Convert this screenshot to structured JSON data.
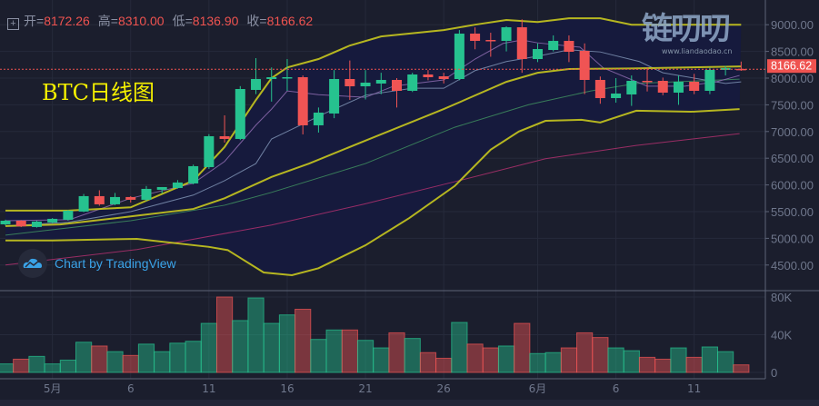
{
  "legend": {
    "open_label": "开=",
    "open": "8172.26",
    "high_label": "高=",
    "high": "8310.00",
    "low_label": "低=",
    "low": "8136.90",
    "close_label": "收=",
    "close": "8166.62"
  },
  "title": "BTC日线图",
  "attribution": "Chart by TradingView",
  "watermark": {
    "text": "链叨叨",
    "url": "www.liandaodao.cn"
  },
  "colors": {
    "up": "#26c28f",
    "down": "#f05454",
    "bb": "#c8c81e",
    "ma5": "#8e6cb0",
    "ma10": "#7f93b4",
    "ma30": "#3f8f5f",
    "ma60": "#b0306e",
    "bg": "#1b1e2d",
    "band_fill": "#161a3d"
  },
  "chart_data": {
    "type": "candlestick",
    "title": "BTC日线图",
    "x_ticks": [
      {
        "index": 3,
        "label": "5月"
      },
      {
        "index": 8,
        "label": "6"
      },
      {
        "index": 13,
        "label": "11"
      },
      {
        "index": 18,
        "label": "16"
      },
      {
        "index": 23,
        "label": "21"
      },
      {
        "index": 28,
        "label": "26"
      },
      {
        "index": 34,
        "label": "6月"
      },
      {
        "index": 39,
        "label": "6"
      },
      {
        "index": 44,
        "label": "11"
      }
    ],
    "y_ticks": [
      "9000.00",
      "8500.00",
      "8000.00",
      "7500.00",
      "7000.00",
      "6500.00",
      "6000.00",
      "5500.00",
      "5000.00",
      "4500.00"
    ],
    "ylim": [
      4000,
      9450
    ],
    "last_price_label": "8166.62",
    "candles": [
      [
        5262,
        5350,
        5240,
        5330
      ],
      [
        5330,
        5340,
        5210,
        5225
      ],
      [
        5212,
        5330,
        5200,
        5314
      ],
      [
        5297,
        5380,
        5280,
        5365
      ],
      [
        5348,
        5530,
        5330,
        5518
      ],
      [
        5501,
        5830,
        5490,
        5790
      ],
      [
        5790,
        5900,
        5610,
        5637
      ],
      [
        5637,
        5850,
        5620,
        5773
      ],
      [
        5773,
        5790,
        5670,
        5722
      ],
      [
        5722,
        5980,
        5700,
        5926
      ],
      [
        5909,
        5960,
        5840,
        5960
      ],
      [
        5943,
        6090,
        5930,
        6045
      ],
      [
        6028,
        6380,
        6010,
        6351
      ],
      [
        6334,
        6950,
        6300,
        6912
      ],
      [
        6912,
        7303,
        6793,
        6861
      ],
      [
        6861,
        7850,
        6840,
        7796
      ],
      [
        7779,
        8374,
        7700,
        7983
      ],
      [
        7983,
        8200,
        7560,
        8017
      ],
      [
        8000,
        8357,
        7762,
        8017
      ],
      [
        8017,
        8050,
        6946,
        7116
      ],
      [
        7116,
        7450,
        6980,
        7354
      ],
      [
        7337,
        8150,
        7250,
        7983
      ],
      [
        7983,
        8330,
        7592,
        7847
      ],
      [
        7847,
        8150,
        7600,
        7915
      ],
      [
        7898,
        8100,
        7700,
        7966
      ],
      [
        7966,
        8000,
        7450,
        7762
      ],
      [
        7762,
        8100,
        7740,
        8068
      ],
      [
        8068,
        8150,
        7960,
        8017
      ],
      [
        8034,
        8100,
        7900,
        7983
      ],
      [
        7983,
        8900,
        7960,
        8833
      ],
      [
        8833,
        8950,
        8540,
        8697
      ],
      [
        8714,
        8850,
        8400,
        8697
      ],
      [
        8697,
        8970,
        8500,
        8952
      ],
      [
        8952,
        9100,
        8100,
        8357
      ],
      [
        8357,
        8650,
        8300,
        8544
      ],
      [
        8527,
        8800,
        8500,
        8697
      ],
      [
        8697,
        8800,
        8300,
        8493
      ],
      [
        8510,
        8650,
        7700,
        7966
      ],
      [
        7966,
        8030,
        7520,
        7626
      ],
      [
        7626,
        8000,
        7540,
        7711
      ],
      [
        7694,
        8050,
        7480,
        7949
      ],
      [
        7949,
        8200,
        7750,
        7932
      ],
      [
        7949,
        8010,
        7680,
        7728
      ],
      [
        7728,
        8050,
        7500,
        7932
      ],
      [
        7932,
        8080,
        7700,
        7762
      ],
      [
        7762,
        8200,
        7700,
        8153
      ],
      [
        8153,
        8230,
        8050,
        8187
      ],
      [
        8172.26,
        8310,
        8136.9,
        8166.62
      ]
    ],
    "candle_fields": [
      "open",
      "high",
      "low",
      "close"
    ],
    "volume": {
      "y_ticks": [
        "80K",
        "40K",
        "0"
      ],
      "ylim": [
        0,
        86000
      ],
      "values": [
        9000,
        14000,
        17000,
        9000,
        13000,
        32000,
        28000,
        22000,
        18000,
        30000,
        22000,
        31000,
        33000,
        52000,
        80000,
        55000,
        79000,
        52000,
        61000,
        67000,
        35000,
        45000,
        45000,
        34000,
        26000,
        42000,
        36000,
        21000,
        15000,
        53000,
        30000,
        26000,
        28000,
        52000,
        20000,
        21000,
        26000,
        42000,
        37000,
        26000,
        23000,
        16000,
        14000,
        26000,
        16000,
        27000,
        22000,
        8000
      ]
    },
    "indicators": [
      {
        "name": "BB upper",
        "color_key": "bb",
        "width": 2,
        "points": [
          [
            0,
            5520
          ],
          [
            4,
            5520
          ],
          [
            8,
            5580
          ],
          [
            12,
            6080
          ],
          [
            14,
            6710
          ],
          [
            16,
            7590
          ],
          [
            17,
            8000
          ],
          [
            18,
            8200
          ],
          [
            20,
            8357
          ],
          [
            22,
            8610
          ],
          [
            24,
            8780
          ],
          [
            28,
            8900
          ],
          [
            30,
            9000
          ],
          [
            32,
            9088
          ],
          [
            34,
            9050
          ],
          [
            36,
            9120
          ],
          [
            38,
            9120
          ],
          [
            40,
            9000
          ],
          [
            47,
            9000
          ]
        ]
      },
      {
        "name": "BB basis",
        "color_key": "bb",
        "width": 2,
        "points": [
          [
            0,
            5230
          ],
          [
            3.5,
            5260
          ],
          [
            8,
            5410
          ],
          [
            12,
            5550
          ],
          [
            14,
            5750
          ],
          [
            17,
            6150
          ],
          [
            19.4,
            6400
          ],
          [
            23,
            6830
          ],
          [
            28,
            7420
          ],
          [
            32,
            7930
          ],
          [
            34,
            8100
          ],
          [
            36,
            8170
          ],
          [
            40,
            8180
          ],
          [
            47,
            8220
          ]
        ]
      },
      {
        "name": "BB lower",
        "color_key": "bb",
        "width": 2,
        "points": [
          [
            0,
            4960
          ],
          [
            3,
            4960
          ],
          [
            8.4,
            4990
          ],
          [
            13,
            4840
          ],
          [
            14.2,
            4780
          ],
          [
            16.5,
            4360
          ],
          [
            18.3,
            4310
          ],
          [
            20,
            4440
          ],
          [
            23,
            4870
          ],
          [
            25.8,
            5380
          ],
          [
            28.7,
            5980
          ],
          [
            31,
            6660
          ],
          [
            32.8,
            7000
          ],
          [
            34.5,
            7200
          ],
          [
            36.8,
            7220
          ],
          [
            38,
            7170
          ],
          [
            40.3,
            7390
          ],
          [
            43.8,
            7370
          ],
          [
            46.9,
            7420
          ]
        ]
      },
      {
        "name": "MA5",
        "color_key": "ma5",
        "width": 1,
        "points": [
          [
            0,
            5330
          ],
          [
            4.1,
            5350
          ],
          [
            8,
            5750
          ],
          [
            10,
            5890
          ],
          [
            12,
            6030
          ],
          [
            14,
            6440
          ],
          [
            16,
            7120
          ],
          [
            17,
            7420
          ],
          [
            18,
            7760
          ],
          [
            20,
            7690
          ],
          [
            23,
            7640
          ],
          [
            24.8,
            7850
          ],
          [
            28,
            7966
          ],
          [
            30,
            8357
          ],
          [
            31.8,
            8650
          ],
          [
            33,
            8714
          ],
          [
            34,
            8660
          ],
          [
            36.7,
            8580
          ],
          [
            38.2,
            8190
          ],
          [
            41,
            7850
          ],
          [
            43.4,
            7850
          ],
          [
            45.4,
            7930
          ],
          [
            46.9,
            8050
          ]
        ]
      },
      {
        "name": "MA10",
        "color_key": "ma10",
        "width": 1,
        "points": [
          [
            0,
            5230
          ],
          [
            4,
            5300
          ],
          [
            8,
            5500
          ],
          [
            12,
            5810
          ],
          [
            14,
            6080
          ],
          [
            16,
            6400
          ],
          [
            17,
            6860
          ],
          [
            18,
            7000
          ],
          [
            20.4,
            7340
          ],
          [
            23,
            7680
          ],
          [
            26,
            7810
          ],
          [
            28,
            7810
          ],
          [
            30,
            8140
          ],
          [
            32,
            8310
          ],
          [
            34,
            8410
          ],
          [
            36,
            8530
          ],
          [
            38,
            8490
          ],
          [
            40.5,
            8310
          ],
          [
            42,
            8100
          ],
          [
            46,
            7900
          ],
          [
            47,
            7930
          ]
        ]
      },
      {
        "name": "MA30",
        "color_key": "ma30",
        "width": 1,
        "points": [
          [
            0,
            5060
          ],
          [
            8,
            5330
          ],
          [
            14,
            5620
          ],
          [
            17,
            5860
          ],
          [
            23,
            6400
          ],
          [
            28.7,
            7080
          ],
          [
            33.4,
            7500
          ],
          [
            37.4,
            7760
          ],
          [
            40.3,
            7900
          ],
          [
            46.9,
            7980
          ]
        ]
      },
      {
        "name": "MA60",
        "color_key": "ma60",
        "width": 1,
        "points": [
          [
            0,
            4500
          ],
          [
            8.4,
            4790
          ],
          [
            17,
            5250
          ],
          [
            22.9,
            5640
          ],
          [
            28.7,
            6060
          ],
          [
            34.5,
            6490
          ],
          [
            40.3,
            6740
          ],
          [
            46.9,
            6960
          ]
        ]
      }
    ]
  }
}
